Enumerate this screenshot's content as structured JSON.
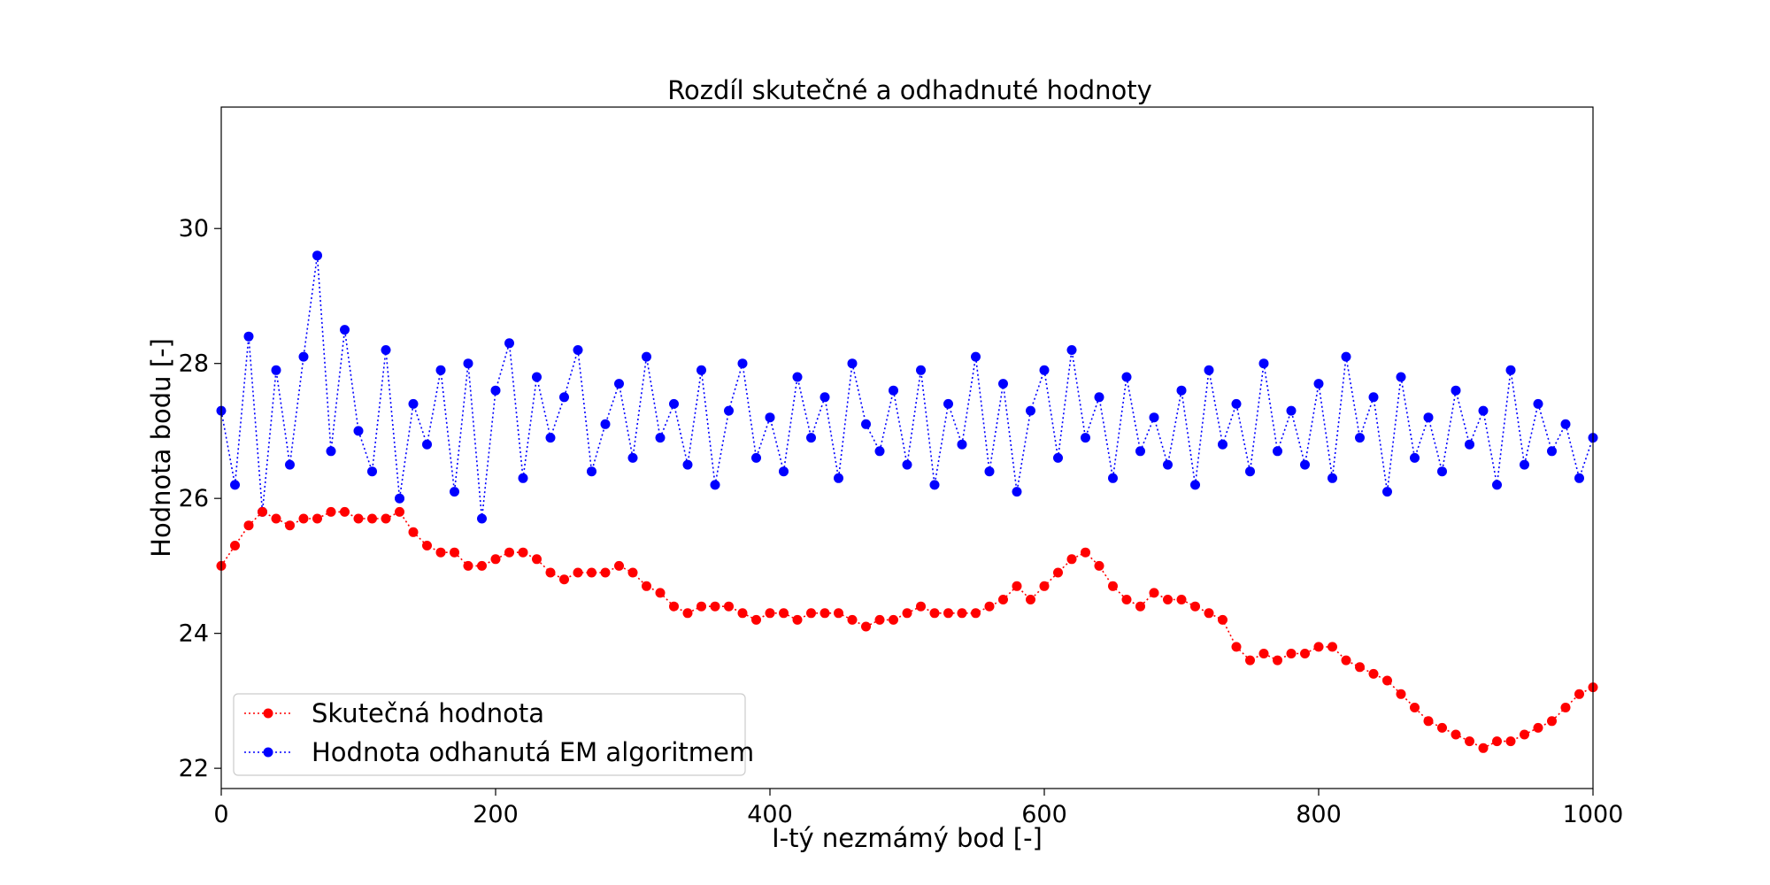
{
  "chart_data": {
    "type": "line",
    "title": "Rozdíl skutečné a odhadnuté hodnoty",
    "xlabel": "I-tý nezmámý bod [-]",
    "ylabel": "Hodnota bodu [-]",
    "xlim": [
      0,
      1000
    ],
    "ylim": [
      21.7,
      31.8
    ],
    "xticks": [
      0,
      200,
      400,
      600,
      800,
      1000
    ],
    "yticks": [
      22,
      24,
      26,
      28,
      30
    ],
    "grid": false,
    "legend_position": "bottom-left",
    "series": [
      {
        "name": "Skutečná hodnota",
        "color": "#ff0000",
        "marker": "circle",
        "line_style": "dotted",
        "x": [
          0,
          10,
          20,
          30,
          40,
          50,
          60,
          70,
          80,
          90,
          100,
          110,
          120,
          130,
          140,
          150,
          160,
          170,
          180,
          190,
          200,
          210,
          220,
          230,
          240,
          250,
          260,
          270,
          280,
          290,
          300,
          310,
          320,
          330,
          340,
          350,
          360,
          370,
          380,
          390,
          400,
          410,
          420,
          430,
          440,
          450,
          460,
          470,
          480,
          490,
          500,
          510,
          520,
          530,
          540,
          550,
          560,
          570,
          580,
          590,
          600,
          610,
          620,
          630,
          640,
          650,
          660,
          670,
          680,
          690,
          700,
          710,
          720,
          730,
          740,
          750,
          760,
          770,
          780,
          790,
          800,
          810,
          820,
          830,
          840,
          850,
          860,
          870,
          880,
          890,
          900,
          910,
          920,
          930,
          940,
          950,
          960,
          970,
          980,
          990,
          1000
        ],
        "values": [
          25.0,
          25.3,
          25.6,
          25.8,
          25.7,
          25.6,
          25.7,
          25.7,
          25.8,
          25.8,
          25.7,
          25.7,
          25.7,
          25.8,
          25.5,
          25.3,
          25.2,
          25.2,
          25.0,
          25.0,
          25.1,
          25.2,
          25.2,
          25.1,
          24.9,
          24.8,
          24.9,
          24.9,
          24.9,
          25.0,
          24.9,
          24.7,
          24.6,
          24.4,
          24.3,
          24.4,
          24.4,
          24.4,
          24.3,
          24.2,
          24.3,
          24.3,
          24.2,
          24.3,
          24.3,
          24.3,
          24.2,
          24.1,
          24.2,
          24.2,
          24.3,
          24.4,
          24.3,
          24.3,
          24.3,
          24.3,
          24.4,
          24.5,
          24.7,
          24.5,
          24.7,
          24.9,
          25.1,
          25.2,
          25.0,
          24.7,
          24.5,
          24.4,
          24.6,
          24.5,
          24.5,
          24.4,
          24.3,
          24.2,
          23.8,
          23.6,
          23.7,
          23.6,
          23.7,
          23.7,
          23.8,
          23.8,
          23.6,
          23.5,
          23.4,
          23.3,
          23.1,
          22.9,
          22.7,
          22.6,
          22.5,
          22.4,
          22.3,
          22.4,
          22.4,
          22.5,
          22.6,
          22.7,
          22.9,
          23.1,
          23.2
        ]
      },
      {
        "name": "Hodnota odhanutá EM algoritmem",
        "color": "#0000ff",
        "marker": "circle",
        "line_style": "dotted",
        "x": [
          0,
          10,
          20,
          30,
          40,
          50,
          60,
          70,
          80,
          90,
          100,
          110,
          120,
          130,
          140,
          150,
          160,
          170,
          180,
          190,
          200,
          210,
          220,
          230,
          240,
          250,
          260,
          270,
          280,
          290,
          300,
          310,
          320,
          330,
          340,
          350,
          360,
          370,
          380,
          390,
          400,
          410,
          420,
          430,
          440,
          450,
          460,
          470,
          480,
          490,
          500,
          510,
          520,
          530,
          540,
          550,
          560,
          570,
          580,
          590,
          600,
          610,
          620,
          630,
          640,
          650,
          660,
          670,
          680,
          690,
          700,
          710,
          720,
          730,
          740,
          750,
          760,
          770,
          780,
          790,
          800,
          810,
          820,
          830,
          840,
          850,
          860,
          870,
          880,
          890,
          900,
          910,
          920,
          930,
          940,
          950,
          960,
          970,
          980,
          990,
          1000
        ],
        "values": [
          27.3,
          26.2,
          28.4,
          25.8,
          27.9,
          26.5,
          28.1,
          29.6,
          26.7,
          28.5,
          27.0,
          26.4,
          28.2,
          26.0,
          27.4,
          26.8,
          27.9,
          26.1,
          28.0,
          25.7,
          27.6,
          28.3,
          26.3,
          27.8,
          26.9,
          27.5,
          28.2,
          26.4,
          27.1,
          27.7,
          26.6,
          28.1,
          26.9,
          27.4,
          26.5,
          27.9,
          26.2,
          27.3,
          28.0,
          26.6,
          27.2,
          26.4,
          27.8,
          26.9,
          27.5,
          26.3,
          28.0,
          27.1,
          26.7,
          27.6,
          26.5,
          27.9,
          26.2,
          27.4,
          26.8,
          28.1,
          26.4,
          27.7,
          26.1,
          27.3,
          27.9,
          26.6,
          28.2,
          26.9,
          27.5,
          26.3,
          27.8,
          26.7,
          27.2,
          26.5,
          27.6,
          26.2,
          27.9,
          26.8,
          27.4,
          26.4,
          28.0,
          26.7,
          27.3,
          26.5,
          27.7,
          26.3,
          28.1,
          26.9,
          27.5,
          26.1,
          27.8,
          26.6,
          27.2,
          26.4,
          27.6,
          26.8,
          27.3,
          26.2,
          27.9,
          26.5,
          27.4,
          26.7,
          27.1,
          26.3,
          26.9
        ]
      }
    ]
  }
}
